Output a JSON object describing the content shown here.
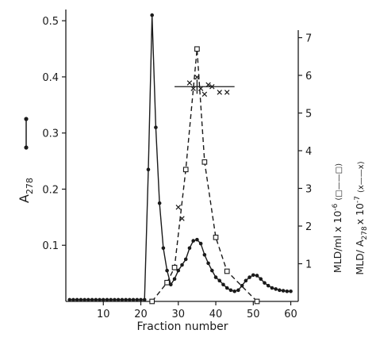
{
  "chart_data": {
    "type": "line",
    "xlabel": "Fraction number",
    "x_ticks": [
      10,
      20,
      30,
      40,
      50,
      60
    ],
    "xlim": [
      0,
      62
    ],
    "left_axis": {
      "label_main": "A",
      "label_sub": "278",
      "ylim": [
        0,
        0.52
      ],
      "ticks": [
        0.1,
        0.2,
        0.3,
        0.4,
        0.5
      ],
      "tick_labels": [
        "0.1",
        "0.2",
        "0.3",
        "0.4",
        "0.5"
      ]
    },
    "right_axis": {
      "label_line1": "MLD/ml x 10",
      "label_line1_exp": "-6",
      "label_line1_legend": "(□——□)",
      "label_line2": "MLD/ A",
      "label_line2_sub": "278",
      "label_line2_tail": "x 10",
      "label_line2_exp": "-7",
      "label_line2_legend": "(x——x)",
      "ylim": [
        0,
        7.2
      ],
      "ticks": [
        1,
        2,
        3,
        4,
        5,
        6,
        7
      ],
      "tick_labels": [
        "1",
        "2",
        "3",
        "4",
        "5",
        "6",
        "7"
      ]
    },
    "series": [
      {
        "marker": "filled-circle",
        "style": "solid",
        "axis": "left",
        "x": [
          1,
          2,
          3,
          4,
          5,
          6,
          7,
          8,
          9,
          10,
          11,
          12,
          13,
          14,
          15,
          16,
          17,
          18,
          19,
          20,
          21,
          22,
          23,
          24,
          25,
          26,
          27,
          28,
          29,
          30,
          31,
          32,
          33,
          34,
          35,
          36,
          37,
          38,
          39,
          40,
          41,
          42,
          43,
          44,
          45,
          46,
          47,
          48,
          49,
          50,
          51,
          52,
          53,
          54,
          55,
          56,
          57,
          58,
          59,
          60
        ],
        "values": [
          0.003,
          0.003,
          0.003,
          0.003,
          0.003,
          0.003,
          0.003,
          0.003,
          0.003,
          0.003,
          0.003,
          0.003,
          0.003,
          0.003,
          0.003,
          0.003,
          0.003,
          0.003,
          0.003,
          0.003,
          0.003,
          0.235,
          0.51,
          0.31,
          0.175,
          0.095,
          0.055,
          0.03,
          0.04,
          0.055,
          0.065,
          0.075,
          0.095,
          0.108,
          0.11,
          0.103,
          0.083,
          0.068,
          0.055,
          0.043,
          0.037,
          0.03,
          0.024,
          0.02,
          0.018,
          0.02,
          0.028,
          0.037,
          0.043,
          0.047,
          0.046,
          0.04,
          0.033,
          0.028,
          0.024,
          0.022,
          0.02,
          0.019,
          0.018,
          0.018
        ]
      },
      {
        "marker": "open-square",
        "style": "dashed",
        "axis": "right",
        "x": [
          23,
          27,
          29,
          32,
          35,
          37,
          40,
          43,
          51
        ],
        "values": [
          0.0,
          0.5,
          0.9,
          3.5,
          6.7,
          3.7,
          1.7,
          0.8,
          0.0
        ]
      },
      {
        "marker": "cross",
        "style": "none",
        "axis": "right",
        "x": [
          30,
          31,
          33,
          34,
          35,
          36,
          37,
          38,
          39,
          41,
          43
        ],
        "values": [
          2.5,
          2.2,
          5.8,
          5.65,
          5.95,
          5.65,
          5.5,
          5.75,
          5.7,
          5.55,
          5.55
        ]
      }
    ],
    "reference_line": {
      "axis": "right",
      "x_range": [
        29,
        45
      ],
      "value": 5.7
    },
    "grid": false,
    "legend": "in axis labels"
  }
}
